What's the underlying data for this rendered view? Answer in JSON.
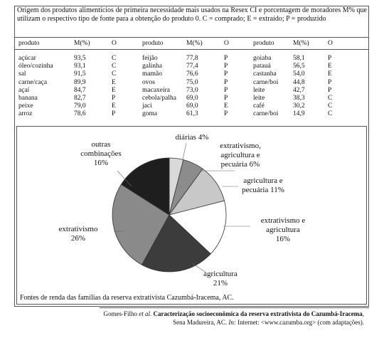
{
  "table": {
    "title": "Origem dos produtos alimentícios de primeira necessidade mais usados na Resex CI e porcentagem de moradores M% que utilizam o respectivo tipo de fonte para a obtenção do produto 0. C = comprado; E = extraído; P = produzido",
    "columns": [
      "produto",
      "M(%)",
      "O",
      "produto",
      "M(%)",
      "O",
      "produto",
      "M(%)",
      "O"
    ],
    "rows": [
      [
        "açúcar",
        "93,5",
        "C",
        "feijão",
        "77,8",
        "P",
        "goiaba",
        "58,1",
        "P"
      ],
      [
        "óleo/cozinha",
        "93,1",
        "C",
        "galinha",
        "77,4",
        "P",
        "patauá",
        "56,5",
        "E"
      ],
      [
        "sal",
        "91,5",
        "C",
        "mamão",
        "76,6",
        "P",
        "castanha",
        "54,0",
        "E"
      ],
      [
        "carne/caça",
        "89,9",
        "E",
        "ovos",
        "75,0",
        "P",
        "carne/boi",
        "44,8",
        "P"
      ],
      [
        "açaí",
        "84,7",
        "E",
        "macaxeira",
        "73,0",
        "P",
        "leite",
        "42,7",
        "P"
      ],
      [
        "banana",
        "82,7",
        "P",
        "cebola/palha",
        "69,0",
        "P",
        "leite",
        "38,3",
        "C"
      ],
      [
        "peixe",
        "79,0",
        "E",
        "jaci",
        "69,0",
        "E",
        "café",
        "30,2",
        "C"
      ],
      [
        "arroz",
        "78,6",
        "P",
        "goma",
        "61,3",
        "P",
        "carne/boi",
        "14,9",
        "C"
      ]
    ]
  },
  "chart_data": {
    "type": "pie",
    "slices": [
      {
        "label_lines": [
          "diárias"
        ],
        "value": 4,
        "value_label": "4%",
        "color": "#d9d9d9"
      },
      {
        "label_lines": [
          "extrativismo,",
          "agricultura e",
          "pecuária"
        ],
        "value": 6,
        "value_label": "6%",
        "color": "#8c8c8c"
      },
      {
        "label_lines": [
          "agricultura e",
          "pecuária"
        ],
        "value": 11,
        "value_label": "11%",
        "color": "#c8c8c8"
      },
      {
        "label_lines": [
          "extrativismo e",
          "agricultura"
        ],
        "value": 16,
        "value_label": "16%",
        "color": "#ffffff"
      },
      {
        "label_lines": [
          "agricultura"
        ],
        "value": 21,
        "value_label": "21%",
        "color": "#3c3c3c"
      },
      {
        "label_lines": [
          "extrativismo"
        ],
        "value": 26,
        "value_label": "26%",
        "color": "#8a8a8a"
      },
      {
        "label_lines": [
          "outras",
          "combinações"
        ],
        "value": 16,
        "value_label": "16%",
        "color": "#1e1e1e"
      }
    ],
    "caption": "Fontes de renda das famílias da reserva extrativista Cazumbá-Iracema, AC."
  },
  "citation": {
    "author": "Gomes-Filho",
    "etal": "et al.",
    "title": "Caracterização socioeconômica da reserva extrativista do Cazumbá-Iracema",
    "rest": ", Sena Madureira, AC.",
    "in": "In:",
    "source": "Internet: <www.cazumba.org> (com adaptações)."
  }
}
